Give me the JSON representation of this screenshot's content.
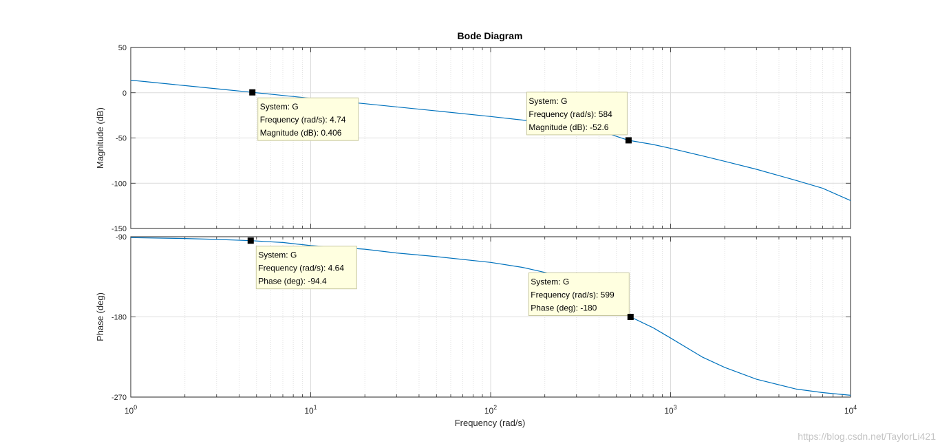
{
  "chart_data": {
    "type": "line",
    "title": "Bode Diagram",
    "xlabel": "Frequency  (rad/s)",
    "xscale": "log",
    "xlim": [
      1,
      10000
    ],
    "x_ticks": [
      1,
      10,
      100,
      1000,
      10000
    ],
    "x_tick_labels": [
      {
        "base": "10",
        "exp": "0"
      },
      {
        "base": "10",
        "exp": "1"
      },
      {
        "base": "10",
        "exp": "2"
      },
      {
        "base": "10",
        "exp": "3"
      },
      {
        "base": "10",
        "exp": "4"
      }
    ],
    "grid": true,
    "line_color": "#0072BD",
    "marker_color": "#000000",
    "tip_background": "#ffffe0",
    "panels": [
      {
        "id": "magnitude",
        "ylabel": "Magnitude (dB)",
        "ylim": [
          -150,
          50
        ],
        "y_ticks": [
          -150,
          -100,
          -50,
          0,
          50
        ],
        "y_tick_labels": [
          "-150",
          "-100",
          "-50",
          "0",
          "50"
        ],
        "series": [
          {
            "x": [
              1,
              2,
              3,
              4.74,
              7,
              10,
              20,
              50,
              100,
              200,
              300,
              400,
              584,
              800,
              1000,
              1500,
              2000,
              3000,
              5000,
              7000,
              10000
            ],
            "y": [
              13.9,
              7.9,
              4.4,
              0.406,
              -3.0,
              -6.1,
              -12.1,
              -20.1,
              -26.3,
              -33.0,
              -37.7,
              -41.8,
              -52.6,
              -57.2,
              -61.5,
              -69.7,
              -75.8,
              -84.6,
              -97.0,
              -105.6,
              -119.1
            ]
          }
        ],
        "datatips": [
          {
            "x": 4.74,
            "y": 0.406,
            "lines": [
              "System: G",
              "Frequency (rad/s): 4.74",
              "Magnitude (dB): 0.406"
            ]
          },
          {
            "x": 584,
            "y": -52.6,
            "lines": [
              "System: G",
              "Frequency (rad/s): 584",
              "Magnitude (dB): -52.6"
            ]
          }
        ]
      },
      {
        "id": "phase",
        "ylabel": "Phase (deg)",
        "ylim": [
          -270,
          -90
        ],
        "y_ticks": [
          -270,
          -180,
          -90
        ],
        "y_tick_labels": [
          "-270",
          "-180",
          "-90"
        ],
        "series": [
          {
            "x": [
              1,
              2,
              3,
              4.64,
              7,
              10,
              20,
              30,
              50,
              100,
              150,
              200,
              300,
              400,
              599,
              800,
              1000,
              1500,
              2000,
              3000,
              5000,
              7000,
              10000
            ],
            "y": [
              -91.0,
              -92.0,
              -93.0,
              -94.4,
              -96.5,
              -100.0,
              -104.0,
              -108.2,
              -112.3,
              -118.8,
              -124.4,
              -130.0,
              -138.0,
              -147.0,
              -180,
              -192.2,
              -203.7,
              -225.0,
              -236.7,
              -250.0,
              -261.0,
              -265.0,
              -268.0
            ]
          }
        ],
        "datatips": [
          {
            "x": 4.64,
            "y": -94.4,
            "lines": [
              "System: G",
              "Frequency (rad/s): 4.64",
              "Phase (deg): -94.4"
            ]
          },
          {
            "x": 599,
            "y": -180,
            "lines": [
              "System: G",
              "Frequency (rad/s): 599",
              "Phase (deg): -180"
            ]
          }
        ]
      }
    ]
  },
  "watermark": "https://blog.csdn.net/TaylorLi421"
}
